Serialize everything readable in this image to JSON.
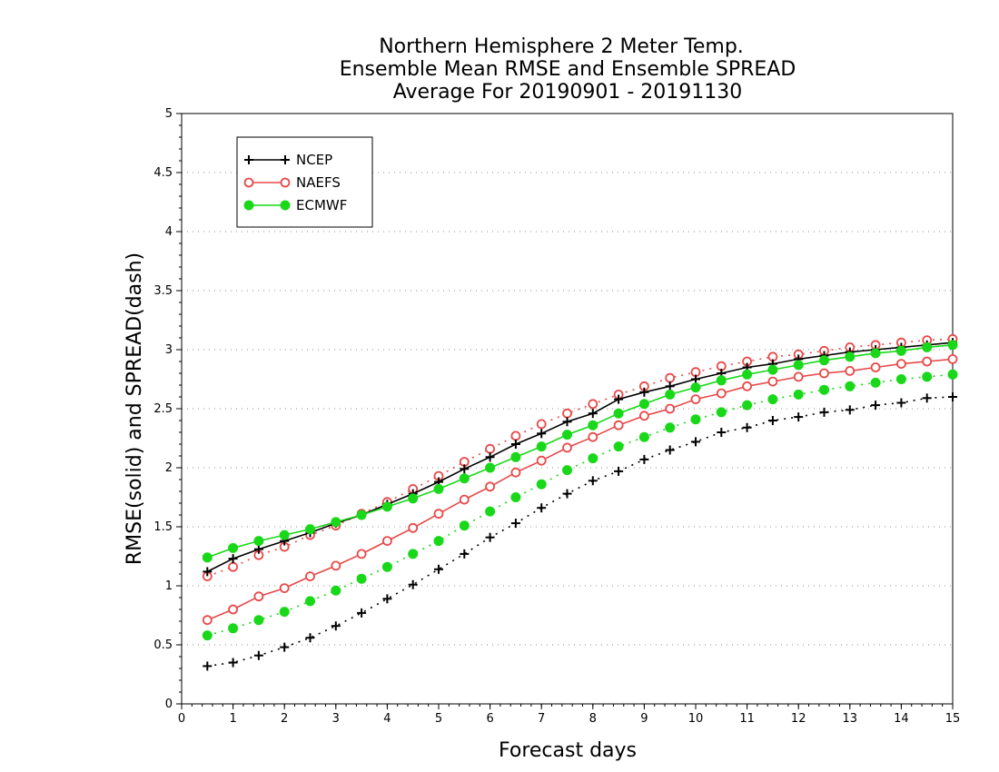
{
  "chart_data": {
    "type": "line",
    "title_lines": [
      "Northern Hemisphere 2 Meter Temp.",
      "Ensemble Mean RMSE and Ensemble SPREAD",
      "Average For 20190901 - 20191130"
    ],
    "xlabel": "Forecast days",
    "ylabel": "RMSE(solid) and SPREAD(dash)",
    "xlim": [
      0,
      15
    ],
    "ylim": [
      0,
      5
    ],
    "x_ticks": [
      "0",
      "1",
      "2",
      "3",
      "4",
      "5",
      "6",
      "7",
      "8",
      "9",
      "10",
      "11",
      "12",
      "13",
      "14",
      "15"
    ],
    "y_ticks": [
      "0",
      "0.5",
      "1",
      "1.5",
      "2",
      "2.5",
      "3",
      "3.5",
      "4",
      "4.5",
      "5"
    ],
    "grid": "horizontal-dotted",
    "legend_position": "top-left",
    "x": [
      0.5,
      1,
      1.5,
      2,
      2.5,
      3,
      3.5,
      4,
      4.5,
      5,
      5.5,
      6,
      6.5,
      7,
      7.5,
      8,
      8.5,
      9,
      9.5,
      10,
      10.5,
      11,
      11.5,
      12,
      12.5,
      13,
      13.5,
      14,
      14.5,
      15
    ],
    "series": [
      {
        "name": "NCEP",
        "color": "#000000",
        "marker": "plus",
        "rmse": [
          1.12,
          1.23,
          1.31,
          1.38,
          1.45,
          1.53,
          1.6,
          1.69,
          1.78,
          1.88,
          1.99,
          2.09,
          2.2,
          2.29,
          2.39,
          2.46,
          2.58,
          2.64,
          2.69,
          2.75,
          2.8,
          2.85,
          2.88,
          2.92,
          2.95,
          2.98,
          3.0,
          3.02,
          3.04,
          3.06
        ],
        "spread": [
          0.32,
          0.35,
          0.41,
          0.48,
          0.56,
          0.66,
          0.77,
          0.89,
          1.01,
          1.14,
          1.27,
          1.41,
          1.53,
          1.66,
          1.78,
          1.89,
          1.97,
          2.07,
          2.15,
          2.22,
          2.3,
          2.34,
          2.4,
          2.43,
          2.47,
          2.49,
          2.53,
          2.55,
          2.59,
          2.6
        ]
      },
      {
        "name": "NAEFS",
        "color": "#e84848",
        "marker": "open-circle",
        "rmse": [
          0.71,
          0.8,
          0.91,
          0.98,
          1.08,
          1.17,
          1.27,
          1.38,
          1.49,
          1.61,
          1.73,
          1.84,
          1.96,
          2.06,
          2.17,
          2.26,
          2.36,
          2.44,
          2.5,
          2.58,
          2.63,
          2.69,
          2.73,
          2.77,
          2.8,
          2.82,
          2.85,
          2.88,
          2.9,
          2.92
        ],
        "spread": [
          1.08,
          1.16,
          1.26,
          1.33,
          1.43,
          1.51,
          1.61,
          1.71,
          1.82,
          1.93,
          2.05,
          2.16,
          2.27,
          2.37,
          2.46,
          2.54,
          2.62,
          2.69,
          2.76,
          2.81,
          2.86,
          2.9,
          2.94,
          2.96,
          2.99,
          3.02,
          3.04,
          3.06,
          3.08,
          3.09
        ]
      },
      {
        "name": "ECMWF",
        "color": "#19d819",
        "marker": "filled-circle",
        "rmse": [
          1.24,
          1.32,
          1.38,
          1.43,
          1.48,
          1.54,
          1.6,
          1.67,
          1.74,
          1.82,
          1.91,
          2.0,
          2.09,
          2.18,
          2.28,
          2.36,
          2.46,
          2.54,
          2.62,
          2.68,
          2.74,
          2.79,
          2.83,
          2.87,
          2.91,
          2.94,
          2.97,
          2.99,
          3.02,
          3.04
        ],
        "spread": [
          0.58,
          0.64,
          0.71,
          0.78,
          0.87,
          0.96,
          1.06,
          1.16,
          1.27,
          1.38,
          1.51,
          1.63,
          1.75,
          1.86,
          1.98,
          2.08,
          2.18,
          2.26,
          2.34,
          2.41,
          2.47,
          2.53,
          2.58,
          2.62,
          2.66,
          2.69,
          2.72,
          2.75,
          2.77,
          2.79
        ]
      }
    ]
  }
}
